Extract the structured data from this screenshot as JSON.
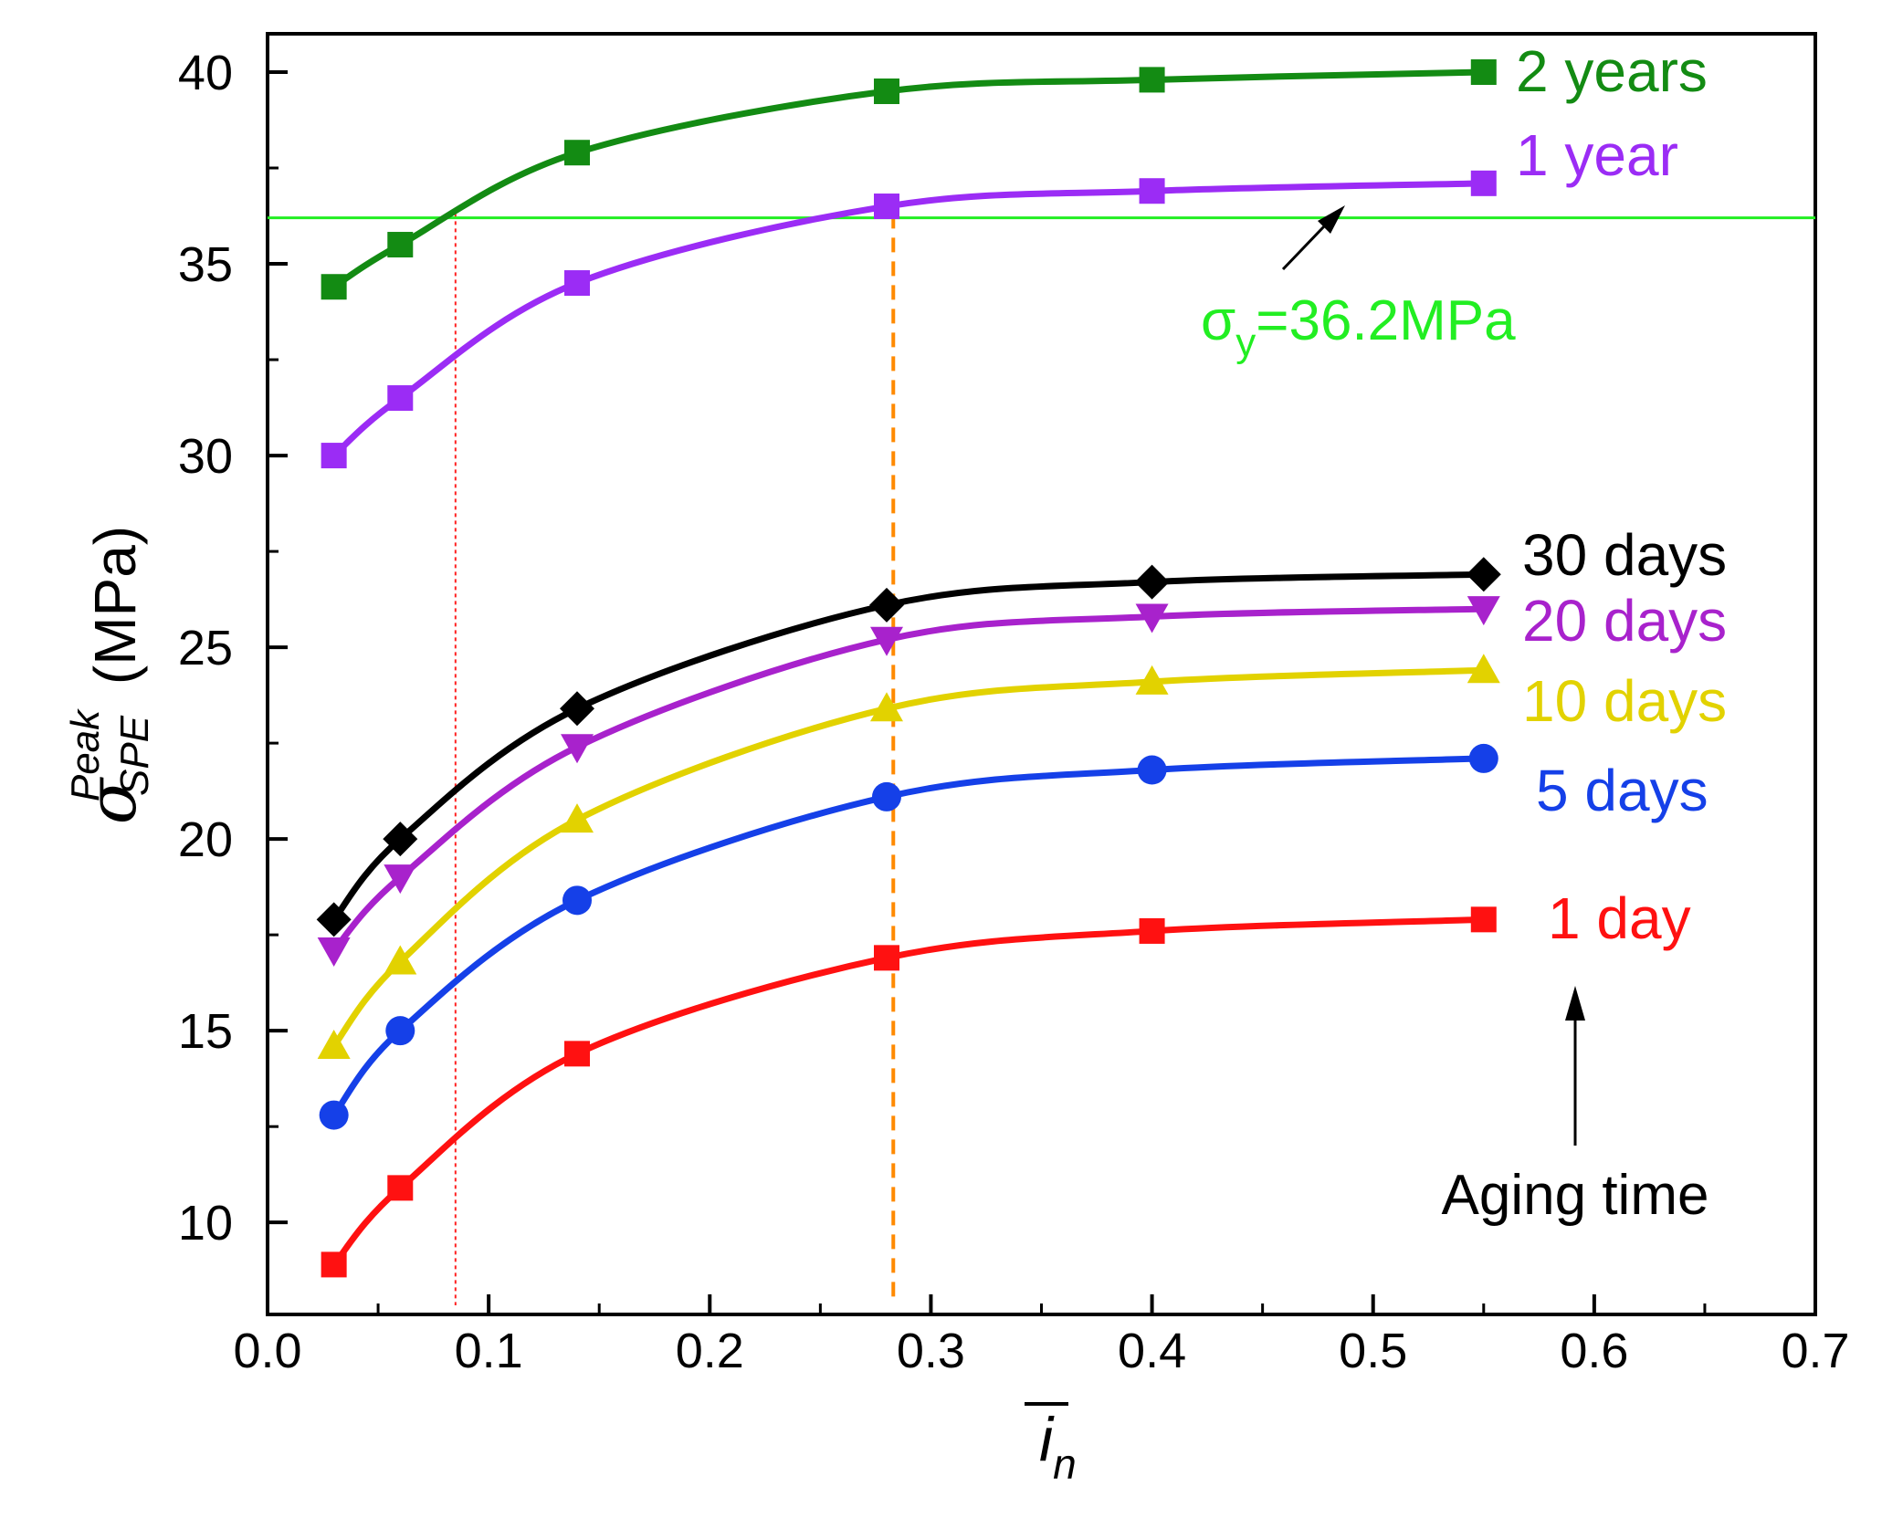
{
  "chart_data": {
    "type": "line",
    "xlabel": "i",
    "xlabel_sub": "n",
    "ylabel_symbol": "σ",
    "ylabel_sup": "Peak",
    "ylabel_sub": "SPE",
    "ylabel_unit": "(MPa)",
    "xlim": [
      0.0,
      0.7
    ],
    "ylim": [
      7.6,
      41.0
    ],
    "xticks": [
      "0.0",
      "0.1",
      "0.2",
      "0.3",
      "0.4",
      "0.5",
      "0.6",
      "0.7"
    ],
    "yticks": [
      "10",
      "15",
      "20",
      "25",
      "30",
      "35",
      "40"
    ],
    "x": [
      0.03,
      0.06,
      0.14,
      0.28,
      0.4,
      0.55
    ],
    "series": [
      {
        "name": "2 years",
        "color": "#138b13",
        "marker": "square",
        "values": [
          34.4,
          35.5,
          37.9,
          39.5,
          39.8,
          40.0
        ]
      },
      {
        "name": "1 year",
        "color": "#9b2cf5",
        "marker": "square",
        "values": [
          30.0,
          31.5,
          34.5,
          36.5,
          36.9,
          37.1
        ]
      },
      {
        "name": "30 days",
        "color": "#000000",
        "marker": "diamond",
        "values": [
          17.9,
          20.0,
          23.4,
          26.1,
          26.7,
          26.9
        ]
      },
      {
        "name": "20 days",
        "color": "#a822cc",
        "marker": "triangle-down",
        "values": [
          17.1,
          19.0,
          22.4,
          25.2,
          25.8,
          26.0
        ]
      },
      {
        "name": "10 days",
        "color": "#e2d200",
        "marker": "triangle-up",
        "values": [
          14.6,
          16.8,
          20.5,
          23.4,
          24.1,
          24.4
        ]
      },
      {
        "name": "5 days",
        "color": "#1540e8",
        "marker": "circle",
        "values": [
          12.8,
          15.0,
          18.4,
          21.1,
          21.8,
          22.1
        ]
      },
      {
        "name": "1 day",
        "color": "#ff1111",
        "marker": "square",
        "values": [
          8.9,
          10.9,
          14.4,
          16.9,
          17.6,
          17.9
        ]
      }
    ],
    "yield_line": {
      "value": 36.2,
      "label": "σy=36.2MPa",
      "label_main": "σ",
      "label_sub": "y",
      "label_rest": "=36.2MPa",
      "color": "#22ee22"
    },
    "vlines": [
      {
        "x": 0.085,
        "color": "#ff2222",
        "style": "dotted"
      },
      {
        "x": 0.283,
        "color": "#ff8a00",
        "style": "dashed"
      }
    ],
    "annotation": {
      "text": "Aging time"
    }
  }
}
